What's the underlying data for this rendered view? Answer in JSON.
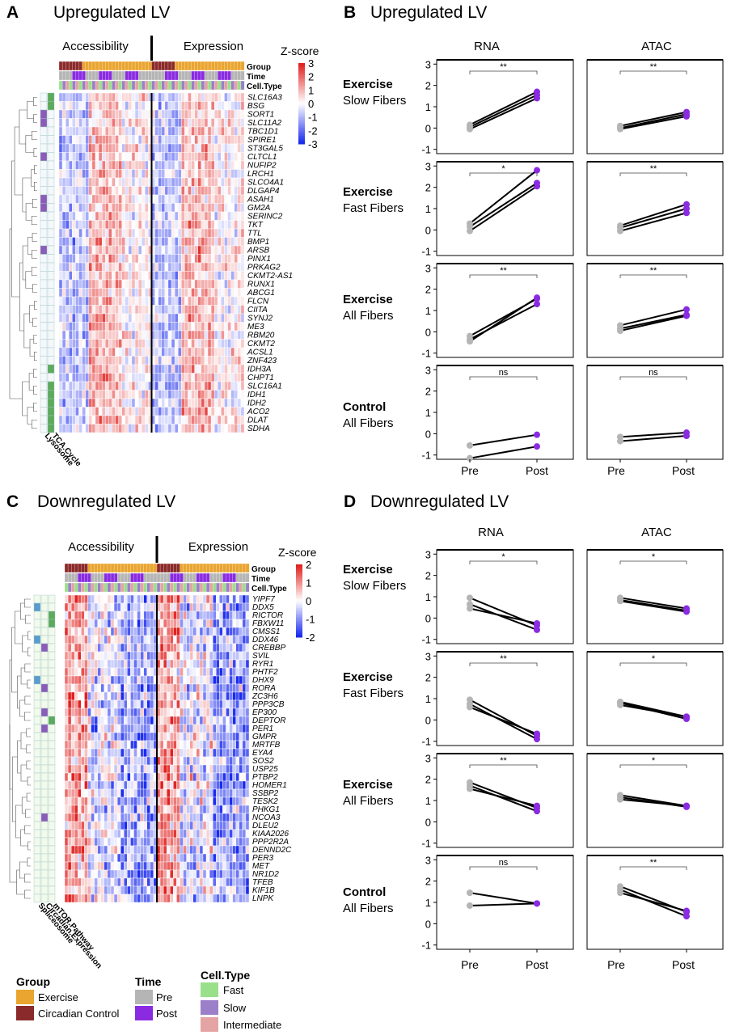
{
  "panels": {
    "A": {
      "letter": "A",
      "title": "Upregulated LV"
    },
    "B": {
      "letter": "B",
      "title": "Upregulated LV"
    },
    "C": {
      "letter": "C",
      "title": "Downregulated LV"
    },
    "D": {
      "letter": "D",
      "title": "Downregulated LV"
    }
  },
  "heatmap_labels": {
    "accessibility": "Accessibility",
    "expression": "Expression",
    "zscore": "Z-score",
    "track_group": "Group",
    "track_time": "Time",
    "track_celltype": "Cell.Type"
  },
  "pathway_labels": {
    "up": [
      "Lysosome",
      "TCA.Cycle"
    ],
    "down": [
      "Spliceosome",
      "Circadian.Expression",
      "mTOR.Pathway"
    ]
  },
  "column_titles": {
    "rna": "RNA",
    "atac": "ATAC"
  },
  "row_labels": [
    {
      "line1": "Exercise",
      "line2": "Slow Fibers"
    },
    {
      "line1": "Exercise",
      "line2": "Fast Fibers"
    },
    {
      "line1": "Exercise",
      "line2": "All Fibers"
    },
    {
      "line1": "Control",
      "line2": "All Fibers"
    }
  ],
  "x_axis": {
    "pre": "Pre",
    "post": "Post"
  },
  "legend": {
    "group_title": "Group",
    "group_items": [
      "Exercise",
      "Circadian Control"
    ],
    "time_title": "Time",
    "time_items": [
      "Pre",
      "Post"
    ],
    "celltype_title": "Cell.Type",
    "celltype_items": [
      "Fast",
      "Slow",
      "Intermediate"
    ]
  },
  "colors": {
    "exercise": "#E9A530",
    "circadian_control": "#8B2A2A",
    "pre": "#B5B5B5",
    "post": "#8A2BE2",
    "fast": "#9AE08A",
    "slow": "#9B7FC8",
    "intermediate": "#E4A4A4",
    "lysosome": "#8A5CB8",
    "tca": "#5DAA5D",
    "spliceosome": "#5A9CCB",
    "circadian_expr": "#8A5CB8",
    "mtor": "#5DAA5D",
    "zscore_high": "#E0211F",
    "zscore_mid": "#FFFFFF",
    "zscore_low": "#1A2AEE"
  },
  "chart_data": [
    {
      "id": "A",
      "type": "heatmap",
      "title": "Upregulated LV",
      "rows": [
        "SLC16A3",
        "BSG",
        "SORT1",
        "SLC11A2",
        "TBC1D1",
        "SPIRE1",
        "ST3GAL5",
        "CLTCL1",
        "NUFIP2",
        "LRCH1",
        "SLCO4A1",
        "DLGAP4",
        "ASAH1",
        "GM2A",
        "SERINC2",
        "TKT",
        "TTL",
        "BMP1",
        "ARSB",
        "PINX1",
        "PRKAG2",
        "CKMT2-AS1",
        "RUNX1",
        "ABCG1",
        "FLCN",
        "CIITA",
        "SYNJ2",
        "ME3",
        "RBM20",
        "CKMT2",
        "ACSL1",
        "ZNF423",
        "IDH3A",
        "CHPT1",
        "SLC16A1",
        "IDH1",
        "IDH2",
        "ACO2",
        "DLAT",
        "SDHA"
      ],
      "column_groups": [
        "Accessibility",
        "Expression"
      ],
      "color_scale": {
        "label": "Z-score",
        "ticks": [
          3,
          2,
          1,
          0,
          -1,
          -2,
          -3
        ]
      },
      "pathways": [
        "Lysosome",
        "TCA.Cycle"
      ],
      "pathway_membership": {
        "Lysosome": [
          "SORT1",
          "SLC11A2",
          "CLTCL1",
          "ASAH1",
          "GM2A",
          "ARSB"
        ],
        "TCA.Cycle": [
          "SLC16A3",
          "BSG",
          "IDH3A",
          "SLC16A1",
          "IDH1",
          "IDH2",
          "ACO2",
          "DLAT",
          "SDHA"
        ]
      }
    },
    {
      "id": "C",
      "type": "heatmap",
      "title": "Downregulated LV",
      "rows": [
        "YIPF7",
        "DDX5",
        "RICTOR",
        "FBXW11",
        "CMSS1",
        "DDX46",
        "CREBBP",
        "SVIL",
        "RYR1",
        "PHTF2",
        "DHX9",
        "RORA",
        "ZC3H6",
        "PPP3CB",
        "EP300",
        "DEPTOR",
        "PER1",
        "GMPR",
        "MRTFB",
        "EYA4",
        "SOS2",
        "USP25",
        "PTBP2",
        "HOMER1",
        "SSBP2",
        "TESK2",
        "PHKG1",
        "NCOA3",
        "DLEU2",
        "KIAA2026",
        "PPP2R2A",
        "DENND2C",
        "PER3",
        "MET",
        "NR1D2",
        "TFEB",
        "KIF1B",
        "LNPK"
      ],
      "column_groups": [
        "Accessibility",
        "Expression"
      ],
      "color_scale": {
        "label": "Z-score",
        "ticks": [
          2,
          1,
          0,
          -1,
          -2
        ]
      },
      "pathways": [
        "Spliceosome",
        "Circadian.Expression",
        "mTOR.Pathway"
      ],
      "pathway_membership": {
        "Spliceosome": [
          "DDX5",
          "DDX46",
          "DHX9"
        ],
        "Circadian.Expression": [
          "CREBBP",
          "RORA",
          "EP300",
          "PER1",
          "NCOA3"
        ],
        "mTOR.Pathway": [
          "RICTOR",
          "FBXW11",
          "DEPTOR"
        ]
      }
    },
    {
      "id": "B",
      "type": "line",
      "title": "Upregulated LV",
      "x": [
        "Pre",
        "Post"
      ],
      "ylim": [
        -1.2,
        3.2
      ],
      "panels": [
        {
          "assay": "RNA",
          "condition": "Exercise Slow Fibers",
          "significance": "**",
          "series": [
            [
              -0.05,
              1.4
            ],
            [
              0.05,
              1.55
            ],
            [
              0.15,
              1.7
            ]
          ]
        },
        {
          "assay": "ATAC",
          "condition": "Exercise Slow Fibers",
          "significance": "**",
          "series": [
            [
              -0.05,
              0.55
            ],
            [
              0.0,
              0.65
            ],
            [
              0.1,
              0.75
            ]
          ]
        },
        {
          "assay": "RNA",
          "condition": "Exercise Fast Fibers",
          "significance": "*",
          "series": [
            [
              -0.05,
              2.05
            ],
            [
              0.15,
              2.2
            ],
            [
              0.3,
              2.8
            ]
          ]
        },
        {
          "assay": "ATAC",
          "condition": "Exercise Fast Fibers",
          "significance": "**",
          "series": [
            [
              -0.05,
              0.8
            ],
            [
              0.1,
              1.0
            ],
            [
              0.2,
              1.2
            ]
          ]
        },
        {
          "assay": "RNA",
          "condition": "Exercise All Fibers",
          "significance": "**",
          "series": [
            [
              -0.45,
              1.6
            ],
            [
              -0.35,
              1.3
            ],
            [
              -0.2,
              1.55
            ]
          ]
        },
        {
          "assay": "ATAC",
          "condition": "Exercise All Fibers",
          "significance": "**",
          "series": [
            [
              0.05,
              0.75
            ],
            [
              0.15,
              0.8
            ],
            [
              0.3,
              1.05
            ]
          ]
        },
        {
          "assay": "RNA",
          "condition": "Control All Fibers",
          "significance": "ns",
          "series": [
            [
              -0.55,
              -0.05
            ],
            [
              -1.15,
              -0.6
            ]
          ]
        },
        {
          "assay": "ATAC",
          "condition": "Control All Fibers",
          "significance": "ns",
          "series": [
            [
              -0.15,
              0.05
            ],
            [
              -0.35,
              -0.1
            ]
          ]
        }
      ]
    },
    {
      "id": "D",
      "type": "line",
      "title": "Downregulated LV",
      "x": [
        "Pre",
        "Post"
      ],
      "ylim": [
        -1.2,
        3.2
      ],
      "panels": [
        {
          "assay": "RNA",
          "condition": "Exercise Slow Fibers",
          "significance": "*",
          "series": [
            [
              0.95,
              -0.35
            ],
            [
              0.65,
              -0.55
            ],
            [
              0.45,
              -0.25
            ]
          ]
        },
        {
          "assay": "ATAC",
          "condition": "Exercise Slow Fibers",
          "significance": "*",
          "series": [
            [
              0.95,
              0.45
            ],
            [
              0.85,
              0.35
            ],
            [
              0.8,
              0.3
            ]
          ]
        },
        {
          "assay": "RNA",
          "condition": "Exercise Fast Fibers",
          "significance": "**",
          "series": [
            [
              0.95,
              -0.75
            ],
            [
              0.75,
              -0.9
            ],
            [
              0.6,
              -0.65
            ]
          ]
        },
        {
          "assay": "ATAC",
          "condition": "Exercise Fast Fibers",
          "significance": "*",
          "series": [
            [
              0.85,
              0.15
            ],
            [
              0.8,
              0.05
            ],
            [
              0.7,
              0.15
            ]
          ]
        },
        {
          "assay": "RNA",
          "condition": "Exercise All Fibers",
          "significance": "**",
          "series": [
            [
              1.85,
              0.65
            ],
            [
              1.7,
              0.5
            ],
            [
              1.55,
              0.75
            ]
          ]
        },
        {
          "assay": "ATAC",
          "condition": "Exercise All Fibers",
          "significance": "*",
          "series": [
            [
              1.25,
              0.75
            ],
            [
              1.15,
              0.7
            ],
            [
              1.05,
              0.75
            ]
          ]
        },
        {
          "assay": "RNA",
          "condition": "Control All Fibers",
          "significance": "ns",
          "series": [
            [
              1.45,
              0.95
            ],
            [
              0.85,
              0.95
            ]
          ]
        },
        {
          "assay": "ATAC",
          "condition": "Control All Fibers",
          "significance": "**",
          "series": [
            [
              1.75,
              0.55
            ],
            [
              1.6,
              0.35
            ],
            [
              1.45,
              0.6
            ]
          ]
        }
      ]
    }
  ]
}
